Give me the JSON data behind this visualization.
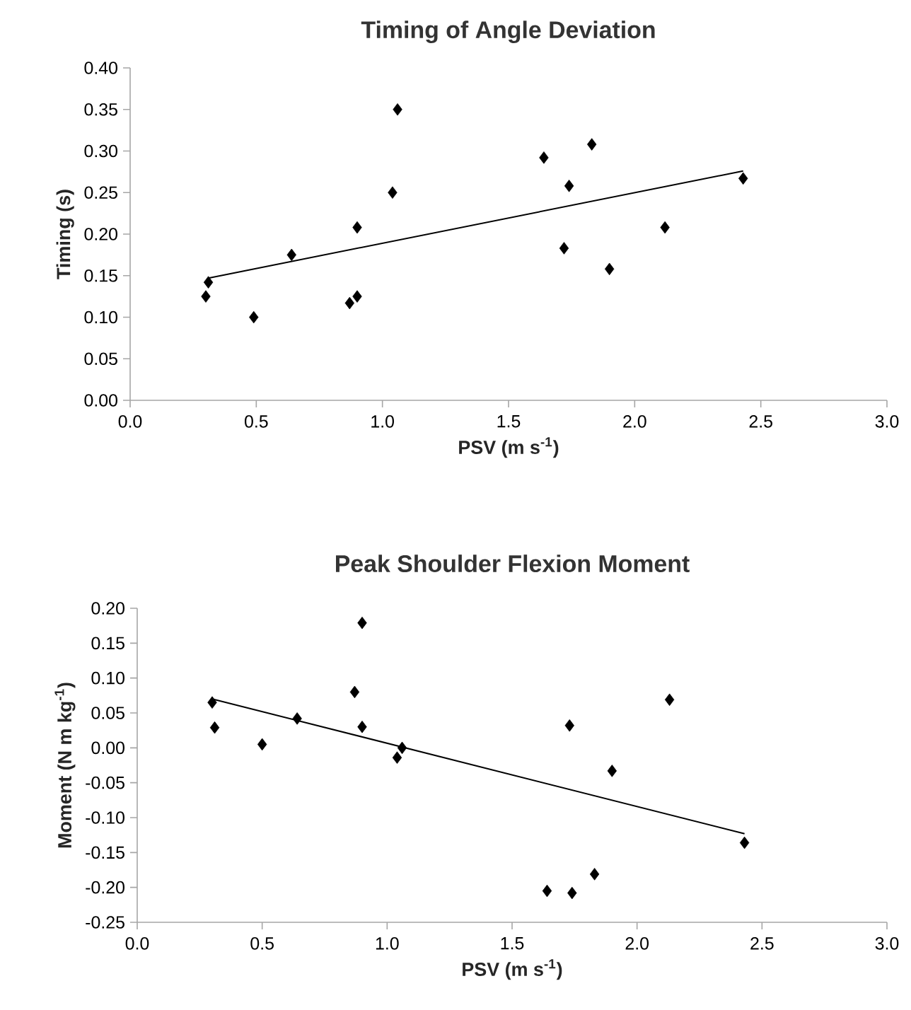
{
  "chart_data": [
    {
      "type": "scatter",
      "title": "Timing of Angle Deviation",
      "xlabel": "PSV (m s$^{-1}$)",
      "ylabel": "Timing (s)",
      "grid": false,
      "xlim": [
        0,
        3
      ],
      "ylim": [
        0,
        0.4
      ],
      "xticks": [
        {
          "value": 0,
          "label": "0.0"
        },
        {
          "value": 0.5,
          "label": "0.5"
        },
        {
          "value": 1,
          "label": "1.0"
        },
        {
          "value": 1.5,
          "label": "1.5"
        },
        {
          "value": 2,
          "label": "2.0"
        },
        {
          "value": 2.5,
          "label": "2.5"
        },
        {
          "value": 3,
          "label": "3.0"
        }
      ],
      "yticks": [
        {
          "value": 0,
          "label": "0.00"
        },
        {
          "value": 0.05,
          "label": "0.05"
        },
        {
          "value": 0.1,
          "label": "0.10"
        },
        {
          "value": 0.15,
          "label": "0.15"
        },
        {
          "value": 0.2,
          "label": "0.20"
        },
        {
          "value": 0.25,
          "label": "0.25"
        },
        {
          "value": 0.3,
          "label": "0.30"
        },
        {
          "value": 0.35,
          "label": "0.35"
        },
        {
          "value": 0.4,
          "label": "0.40"
        }
      ],
      "series": [
        {
          "marker": "diamond",
          "color": "#000000",
          "x": [
            0.3,
            0.31,
            0.49,
            0.64,
            0.87,
            0.9,
            0.9,
            1.04,
            1.06,
            1.64,
            1.72,
            1.74,
            1.83,
            1.9,
            2.12,
            2.43
          ],
          "values": [
            0.125,
            0.142,
            0.1,
            0.175,
            0.117,
            0.125,
            0.208,
            0.25,
            0.35,
            0.292,
            0.183,
            0.258,
            0.308,
            0.158,
            0.208,
            0.267
          ]
        },
        {
          "type": "line",
          "marker": "none",
          "color": "#000000",
          "x": [
            0.31,
            2.43
          ],
          "values": [
            0.147,
            0.276
          ]
        }
      ]
    },
    {
      "type": "scatter",
      "title": "Peak Shoulder Flexion Moment",
      "xlabel": "PSV (m s$^{-1}$)",
      "ylabel": "Moment (N m kg$^{-1}$)",
      "grid": false,
      "xlim": [
        0,
        3
      ],
      "ylim": [
        -0.25,
        0.2
      ],
      "xticks": [
        {
          "value": 0,
          "label": "0.0"
        },
        {
          "value": 0.5,
          "label": "0.5"
        },
        {
          "value": 1,
          "label": "1.0"
        },
        {
          "value": 1.5,
          "label": "1.5"
        },
        {
          "value": 2,
          "label": "2.0"
        },
        {
          "value": 2.5,
          "label": "2.5"
        },
        {
          "value": 3,
          "label": "3.0"
        }
      ],
      "yticks": [
        {
          "value": -0.25,
          "label": "-0.25"
        },
        {
          "value": -0.2,
          "label": "-0.20"
        },
        {
          "value": -0.15,
          "label": "-0.15"
        },
        {
          "value": -0.1,
          "label": "-0.10"
        },
        {
          "value": -0.05,
          "label": "-0.05"
        },
        {
          "value": 0,
          "label": "0.00"
        },
        {
          "value": 0.05,
          "label": "0.05"
        },
        {
          "value": 0.1,
          "label": "0.10"
        },
        {
          "value": 0.15,
          "label": "0.15"
        },
        {
          "value": 0.2,
          "label": "0.20"
        }
      ],
      "series": [
        {
          "marker": "diamond",
          "color": "#000000",
          "x": [
            0.3,
            0.31,
            0.5,
            0.64,
            0.87,
            0.9,
            0.9,
            1.04,
            1.06,
            1.64,
            1.73,
            1.74,
            1.83,
            1.9,
            2.13,
            2.43
          ],
          "values": [
            0.065,
            0.029,
            0.005,
            0.042,
            0.08,
            0.179,
            0.03,
            -0.014,
            0.0,
            -0.205,
            0.032,
            -0.208,
            -0.181,
            -0.033,
            0.069,
            -0.136
          ]
        },
        {
          "type": "line",
          "marker": "none",
          "color": "#000000",
          "x": [
            0.3,
            2.43
          ],
          "values": [
            0.07,
            -0.123
          ]
        }
      ]
    }
  ]
}
